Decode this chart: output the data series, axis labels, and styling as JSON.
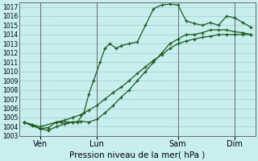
{
  "xlabel": "Pression niveau de la mer( hPa )",
  "bg_color": "#c8eef0",
  "grid_color": "#a8d8da",
  "line_color": "#1a5c1a",
  "ylim": [
    1003,
    1017.5
  ],
  "ytick_min": 1003,
  "ytick_max": 1017,
  "xlim": [
    -0.3,
    14.3
  ],
  "x_tick_labels": [
    "Ven",
    "Lun",
    "Sam",
    "Dim"
  ],
  "x_tick_positions": [
    1.0,
    4.5,
    9.5,
    13.0
  ],
  "x_vline_positions": [
    1.0,
    4.5,
    9.5,
    13.0
  ],
  "series1_x": [
    0.0,
    0.5,
    1.0,
    1.5,
    2.0,
    2.3,
    2.7,
    3.0,
    3.3,
    3.7,
    4.0,
    4.3,
    4.7,
    5.0,
    5.3,
    5.7,
    6.0,
    6.5,
    7.0,
    7.5,
    8.0,
    8.5,
    9.0,
    9.5,
    10.0,
    10.5,
    11.0,
    11.5,
    12.0,
    12.5,
    13.0,
    13.5,
    14.0
  ],
  "series1_y": [
    1004.5,
    1004.1,
    1003.8,
    1003.9,
    1004.5,
    1004.5,
    1004.5,
    1004.5,
    1004.5,
    1005.5,
    1007.5,
    1009.0,
    1011.0,
    1012.5,
    1013.0,
    1012.5,
    1012.8,
    1013.0,
    1013.2,
    1015.0,
    1016.8,
    1017.2,
    1017.3,
    1017.2,
    1015.5,
    1015.2,
    1015.0,
    1015.3,
    1015.0,
    1016.0,
    1015.8,
    1015.3,
    1014.8
  ],
  "series2_x": [
    0.0,
    0.5,
    1.0,
    1.5,
    2.0,
    2.5,
    3.0,
    3.5,
    4.0,
    4.5,
    5.0,
    5.5,
    6.0,
    6.5,
    7.0,
    7.5,
    8.0,
    8.5,
    9.0,
    9.5,
    10.0,
    10.5,
    11.0,
    11.5,
    12.0,
    12.5,
    13.0,
    13.5,
    14.0
  ],
  "series2_y": [
    1004.5,
    1004.2,
    1003.8,
    1003.6,
    1004.0,
    1004.3,
    1004.5,
    1004.6,
    1004.5,
    1004.8,
    1005.5,
    1006.3,
    1007.2,
    1008.0,
    1009.0,
    1010.0,
    1011.0,
    1012.0,
    1013.0,
    1013.5,
    1014.0,
    1014.0,
    1014.2,
    1014.5,
    1014.5,
    1014.5,
    1014.3,
    1014.2,
    1014.0
  ],
  "series3_x": [
    0.0,
    1.0,
    2.0,
    2.5,
    3.0,
    3.5,
    4.0,
    4.5,
    5.0,
    5.5,
    6.0,
    6.5,
    7.0,
    7.5,
    8.0,
    8.5,
    9.0,
    9.5,
    10.0,
    10.5,
    11.0,
    11.5,
    12.0,
    12.5,
    13.0,
    13.5,
    14.0
  ],
  "series3_y": [
    1004.5,
    1004.0,
    1004.5,
    1004.7,
    1005.0,
    1005.3,
    1005.8,
    1006.3,
    1007.0,
    1007.7,
    1008.3,
    1009.0,
    1009.8,
    1010.5,
    1011.2,
    1011.8,
    1012.5,
    1013.0,
    1013.3,
    1013.5,
    1013.7,
    1013.8,
    1014.0,
    1014.0,
    1014.0,
    1014.0,
    1014.0
  ]
}
